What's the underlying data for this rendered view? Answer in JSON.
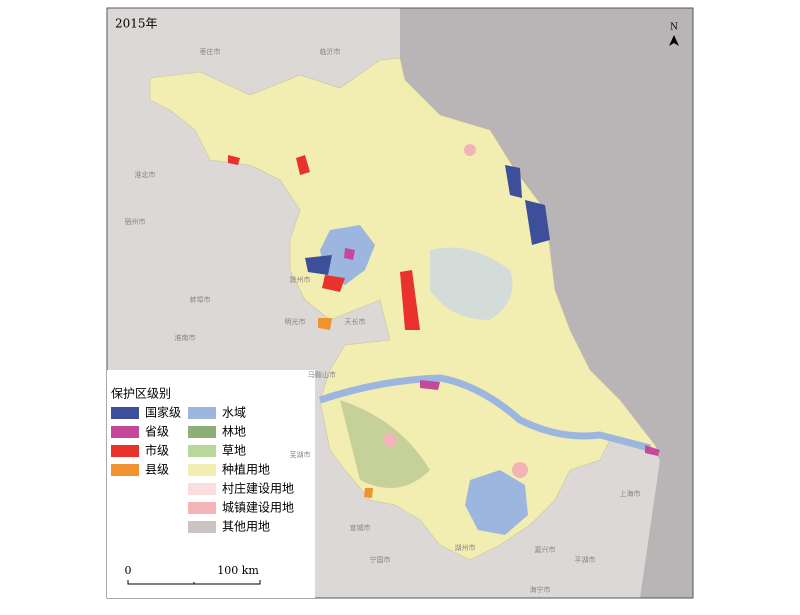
{
  "title": "2015年",
  "north": "N",
  "legend": {
    "title": "保护区级别",
    "items": [
      {
        "label": "国家级",
        "color": "#3d4f9b"
      },
      {
        "label": "省级",
        "color": "#c6489b"
      },
      {
        "label": "市级",
        "color": "#e8322b"
      },
      {
        "label": "县级",
        "color": "#f0922d"
      },
      {
        "label": "水域",
        "color": "#9db6df"
      },
      {
        "label": "林地",
        "color": "#8eae78"
      },
      {
        "label": "草地",
        "color": "#b8d79a"
      },
      {
        "label": "种植用地",
        "color": "#f2eeb2"
      },
      {
        "label": "村庄建设用地",
        "color": "#fbdcdf"
      },
      {
        "label": "城镇建设用地",
        "color": "#f3b4b8"
      },
      {
        "label": "其他用地",
        "color": "#cbc4c2"
      }
    ]
  },
  "scale": {
    "start": "0",
    "end": "100 km"
  },
  "places": [
    "临沂市",
    "枣庄市",
    "淮北市",
    "宿州市",
    "蚌埠市",
    "淮南市",
    "滁州市",
    "明光市",
    "天长市",
    "马鞍山市",
    "芜湖市",
    "宣城市",
    "宁国市",
    "湖州市",
    "嘉兴市",
    "上海市",
    "平湖市",
    "海宁市"
  ]
}
